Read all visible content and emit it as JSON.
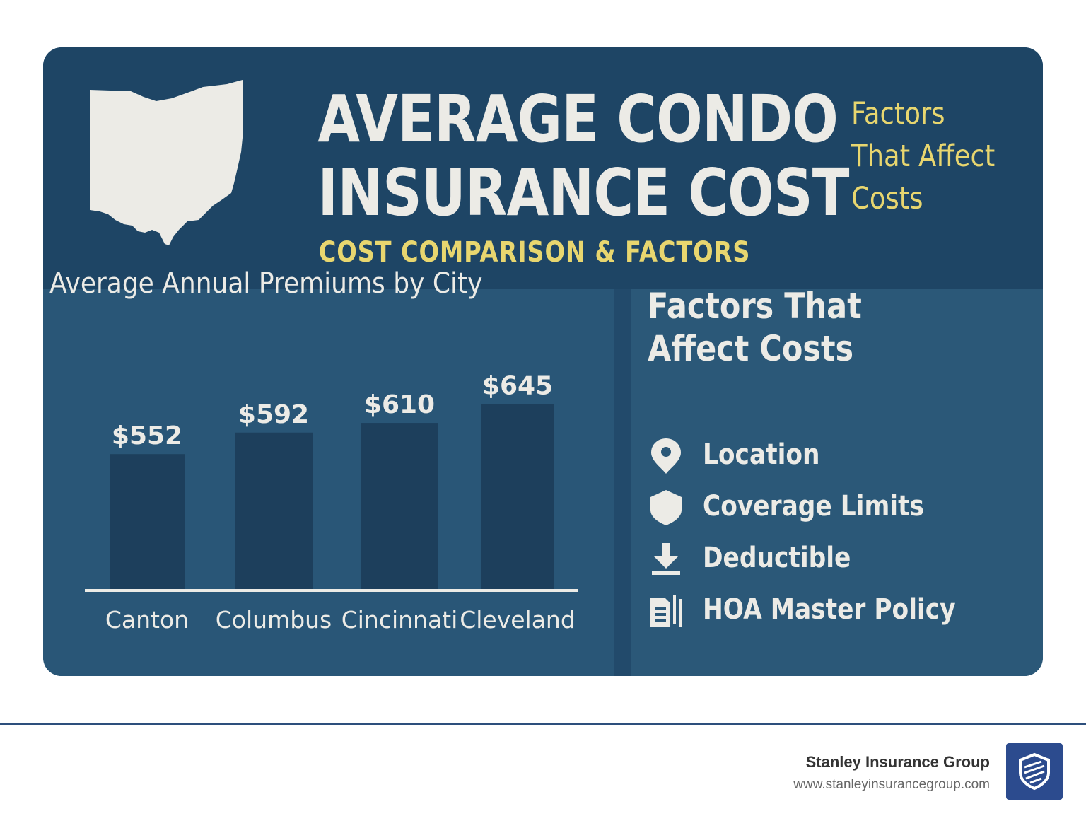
{
  "header": {
    "title_line1": "AVERAGE CONDO",
    "title_line2": "INSURANCE COST",
    "subtitle": "COST COMPARISON & FACTORS",
    "side_note": [
      "Factors",
      "That Affect",
      "Costs"
    ],
    "state_icon": "ohio-map-icon"
  },
  "chart_data": {
    "type": "bar",
    "title": "Average Annual Premiums by City",
    "categories": [
      "Canton",
      "Columbus",
      "Cincinnati",
      "Cleveland"
    ],
    "values": [
      552,
      592,
      610,
      645
    ],
    "value_labels": [
      "$552",
      "$592",
      "$610",
      "$645"
    ],
    "xlabel": "",
    "ylabel": "",
    "ylim": [
      300,
      660
    ],
    "grid": false,
    "legend": "none"
  },
  "factors": {
    "title_lines": [
      "Factors That",
      "Affect Costs"
    ],
    "items": [
      {
        "label": "Location",
        "icon": "location-pin-icon"
      },
      {
        "label": "Coverage Limits",
        "icon": "shield-icon"
      },
      {
        "label": "Deductible",
        "icon": "download-arrow-icon"
      },
      {
        "label": "HOA Master Policy",
        "icon": "documents-icon"
      }
    ]
  },
  "footer": {
    "company": "Stanley Insurance Group",
    "url": "www.stanleyinsurancegroup.com",
    "logo_icon": "shield-logo-icon"
  },
  "colors": {
    "header_bg": "#1e4565",
    "panel_bg": "#295677",
    "bar": "#1d3f5c",
    "accent_yellow": "#e8d66f",
    "text_light": "#ecebe6"
  }
}
